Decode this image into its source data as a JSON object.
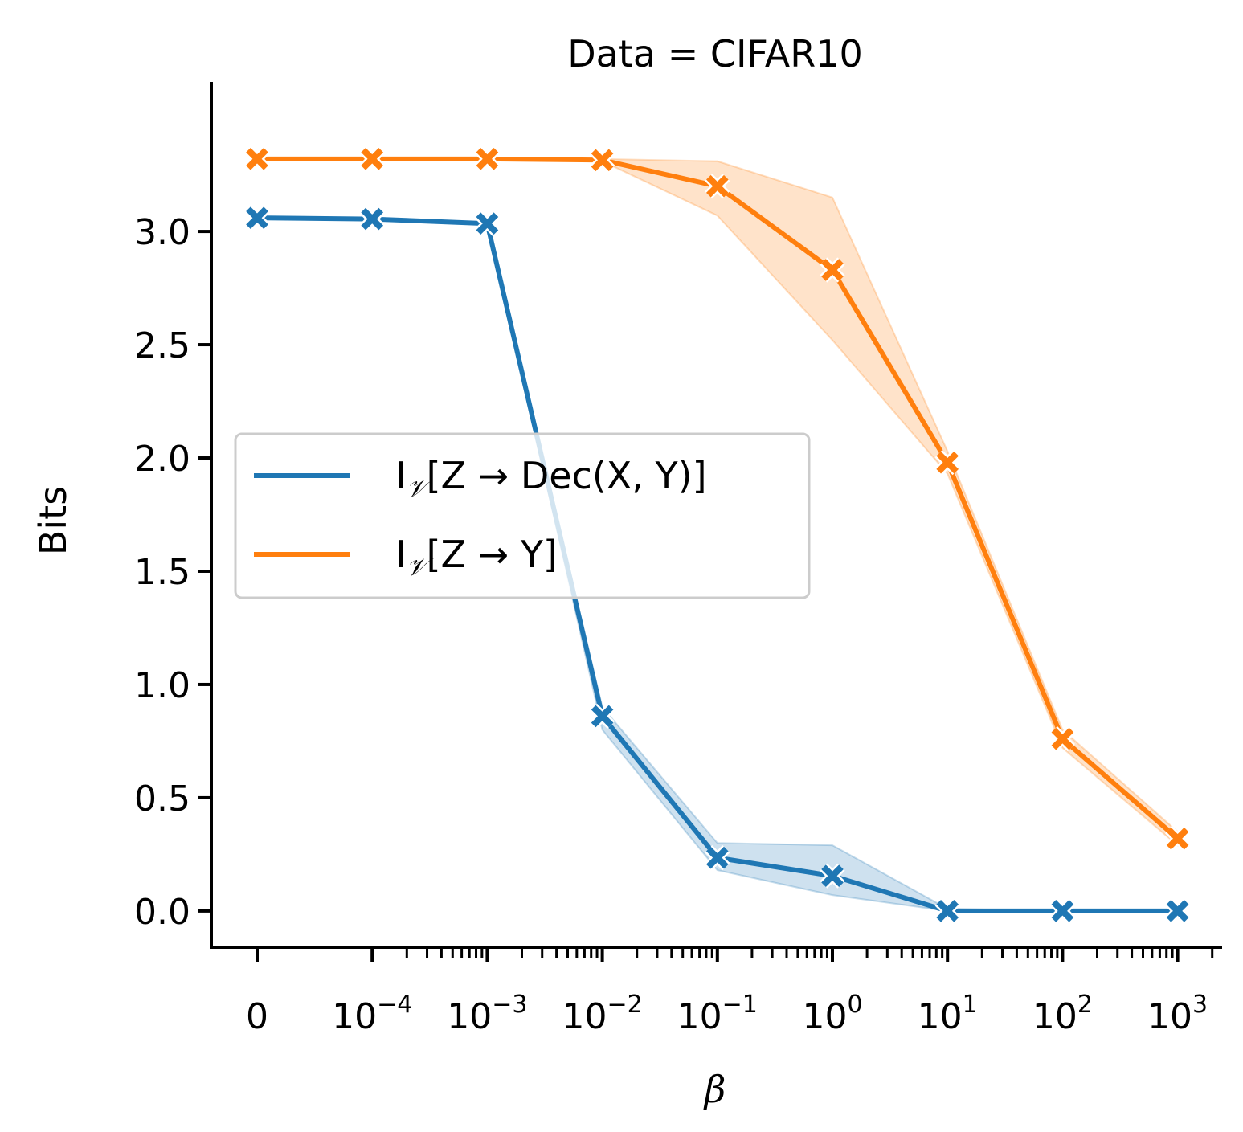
{
  "chart_data": {
    "type": "line",
    "title": "Data = CIFAR10",
    "xlabel": "β",
    "ylabel": "Bits",
    "x_scale": "symlog",
    "x_tick_labels": [
      {
        "base": "0",
        "exp": ""
      },
      {
        "base": "10",
        "exp": "−4"
      },
      {
        "base": "10",
        "exp": "−3"
      },
      {
        "base": "10",
        "exp": "−2"
      },
      {
        "base": "10",
        "exp": "−1"
      },
      {
        "base": "10",
        "exp": "0"
      },
      {
        "base": "10",
        "exp": "1"
      },
      {
        "base": "10",
        "exp": "2"
      },
      {
        "base": "10",
        "exp": "3"
      }
    ],
    "x": [
      0,
      0.0001,
      0.001,
      0.01,
      0.1,
      1,
      10,
      100,
      1000
    ],
    "ylim": [
      -0.16,
      3.66
    ],
    "y_ticks": [
      "0.0",
      "0.5",
      "1.0",
      "1.5",
      "2.0",
      "2.5",
      "3.0"
    ],
    "y_tick_values": [
      0,
      0.5,
      1.0,
      1.5,
      2.0,
      2.5,
      3.0
    ],
    "grid": false,
    "legend_position": "center-left",
    "series": [
      {
        "name": "I_V[Z → Dec(X, Y)]",
        "legend_main": "I",
        "legend_sub": "𝒱",
        "legend_rest": "[Z → Dec(X, Y)]",
        "color": "#1f77b4",
        "marker": "x",
        "values": [
          3.06,
          3.055,
          3.035,
          0.86,
          0.235,
          0.155,
          0.0,
          0.0,
          0.0
        ],
        "band_low": [
          3.06,
          3.055,
          3.035,
          0.8,
          0.18,
          0.07,
          0.0,
          0.0,
          0.0
        ],
        "band_high": [
          3.06,
          3.055,
          3.035,
          0.9,
          0.3,
          0.29,
          0.01,
          0.0,
          0.0
        ]
      },
      {
        "name": "I_V[Z → Y]",
        "legend_main": "I",
        "legend_sub": "𝒱",
        "legend_rest": "[Z → Y]",
        "color": "#ff7f0e",
        "marker": "x",
        "values": [
          3.32,
          3.32,
          3.32,
          3.315,
          3.2,
          2.83,
          1.98,
          0.76,
          0.32
        ],
        "band_low": [
          3.32,
          3.32,
          3.32,
          3.31,
          3.07,
          2.52,
          1.93,
          0.72,
          0.29
        ],
        "band_high": [
          3.32,
          3.32,
          3.32,
          3.32,
          3.31,
          3.15,
          2.03,
          0.8,
          0.35
        ]
      }
    ]
  }
}
